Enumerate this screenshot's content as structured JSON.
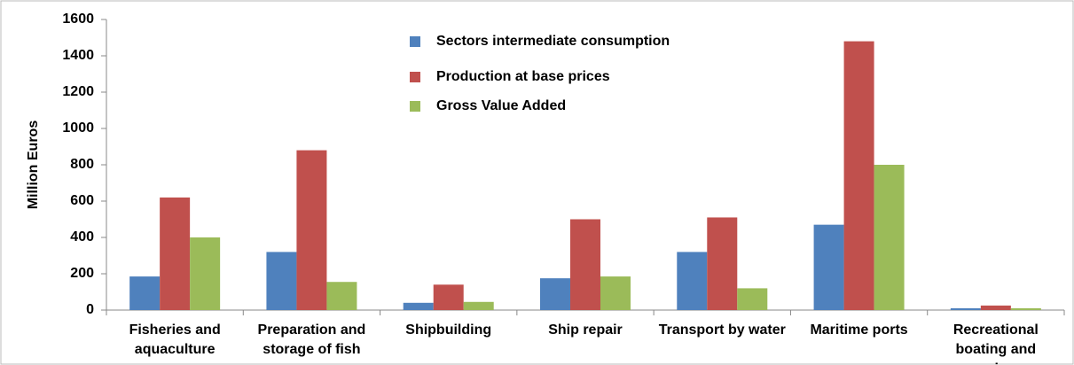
{
  "chart_data": {
    "type": "bar",
    "y_label": "Million Euros",
    "categories": [
      "Fisheries and aquaculture",
      "Preparation and storage of fish",
      "Shipbuilding",
      "Ship repair",
      "Transport by water",
      "Maritime ports",
      "Recreational boating and marinas"
    ],
    "series": [
      {
        "name": "Sectors intermediate consumption",
        "color": "#4f81bd",
        "values": [
          185,
          320,
          40,
          175,
          320,
          470,
          10
        ]
      },
      {
        "name": "Production at base prices",
        "color": "#c0504d",
        "values": [
          620,
          880,
          140,
          500,
          510,
          1480,
          25
        ]
      },
      {
        "name": "Gross Value Added",
        "color": "#9bbb59",
        "values": [
          400,
          155,
          45,
          185,
          120,
          800,
          10
        ]
      }
    ],
    "ylim": [
      0,
      1600
    ],
    "yticks": [
      0,
      200,
      400,
      600,
      800,
      1000,
      1200,
      1400,
      1600
    ],
    "grid": false
  }
}
